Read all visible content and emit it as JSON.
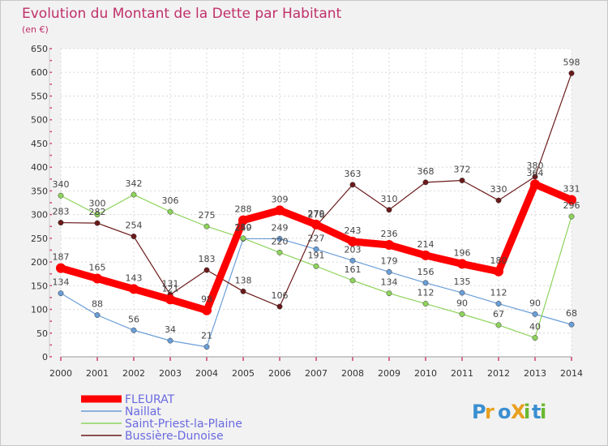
{
  "chart_data": {
    "type": "line",
    "title": "Evolution du Montant de la Dette par Habitant",
    "subtitle": "(en €)",
    "x": [
      "2000",
      "2001",
      "2002",
      "2003",
      "2004",
      "2005",
      "2006",
      "2007",
      "2008",
      "2009",
      "2010",
      "2011",
      "2012",
      "2013",
      "2014"
    ],
    "ylim": [
      0,
      650
    ],
    "yticks": [
      0,
      50,
      100,
      150,
      200,
      250,
      300,
      350,
      400,
      450,
      500,
      550,
      600,
      650
    ],
    "grid": true,
    "legend_position": "bottom-left",
    "series": [
      {
        "name": "FLEURAT",
        "color": "#ff0000",
        "values": [
          187,
          165,
          143,
          121,
          98,
          288,
          309,
          279,
          243,
          236,
          214,
          196,
          180,
          364,
          331
        ]
      },
      {
        "name": "Naillat",
        "color": "#6a9ed8",
        "values": [
          134,
          88,
          56,
          34,
          21,
          249,
          249,
          227,
          203,
          179,
          156,
          135,
          112,
          90,
          68
        ]
      },
      {
        "name": "Saint-Priest-la-Plaine",
        "color": "#8ed35c",
        "values": [
          340,
          300,
          342,
          306,
          275,
          250,
          220,
          191,
          161,
          134,
          112,
          90,
          67,
          40,
          296
        ]
      },
      {
        "name": "Bussière-Dunoise",
        "color": "#6b1a1a",
        "values": [
          283,
          282,
          254,
          131,
          183,
          138,
          106,
          276,
          363,
          310,
          368,
          372,
          330,
          380,
          598
        ]
      }
    ]
  },
  "logo": {
    "text": "ProXiti"
  }
}
